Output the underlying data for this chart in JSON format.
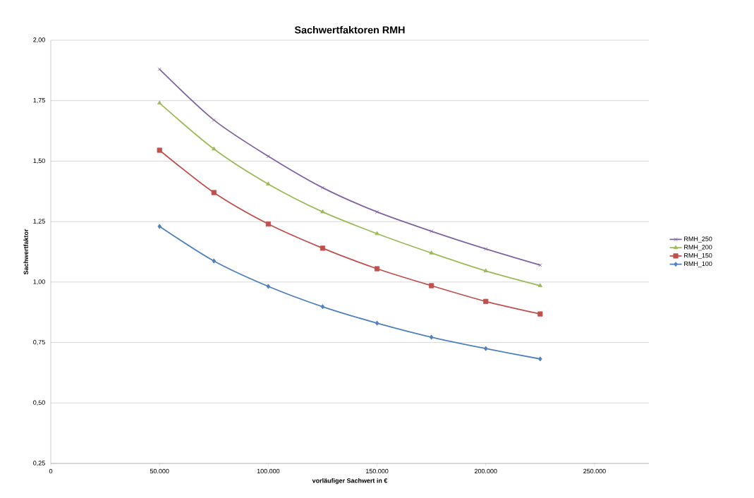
{
  "chart_data": {
    "type": "line",
    "title": "Sachwertfaktoren RMH",
    "xlabel": "vorläufiger Sachwert in €",
    "ylabel": "Sachwertfaktor",
    "x": [
      50000,
      75000,
      100000,
      125000,
      150000,
      175000,
      200000,
      225000
    ],
    "series": [
      {
        "name": "RMH_250",
        "color": "#8064a2",
        "marker": "cross",
        "values": [
          1.88,
          1.67,
          1.52,
          1.39,
          1.29,
          1.21,
          1.137,
          1.07
        ]
      },
      {
        "name": "RMH_200",
        "color": "#9bbb59",
        "marker": "triangle",
        "values": [
          1.74,
          1.55,
          1.405,
          1.29,
          1.2,
          1.12,
          1.046,
          0.985
        ]
      },
      {
        "name": "RMH_150",
        "color": "#c0504d",
        "marker": "square",
        "values": [
          1.545,
          1.37,
          1.24,
          1.14,
          1.055,
          0.985,
          0.92,
          0.868
        ]
      },
      {
        "name": "RMH_100",
        "color": "#4f81bd",
        "marker": "diamond",
        "values": [
          1.23,
          1.087,
          0.982,
          0.898,
          0.83,
          0.772,
          0.725,
          0.682
        ]
      }
    ],
    "xlim": [
      0,
      275000
    ],
    "xticks": [
      0,
      {
        "value": 50000,
        "label": "50.000"
      },
      {
        "value": 100000,
        "label": "100.000"
      },
      {
        "value": 150000,
        "label": "150.000"
      },
      {
        "value": 200000,
        "label": "200.000"
      },
      {
        "value": 250000,
        "label": "250.000"
      }
    ],
    "ylim": [
      0.25,
      2.0
    ],
    "yticks": [
      {
        "value": 0.25,
        "label": "0,25"
      },
      {
        "value": 0.5,
        "label": "0,50"
      },
      {
        "value": 0.75,
        "label": "0,75"
      },
      {
        "value": 1.0,
        "label": "1,00"
      },
      {
        "value": 1.25,
        "label": "1,25"
      },
      {
        "value": 1.5,
        "label": "1,50"
      },
      {
        "value": 1.75,
        "label": "1,75"
      },
      {
        "value": 2.0,
        "label": "2,00"
      }
    ],
    "grid": "y",
    "legend": "right",
    "line_style": "solid"
  }
}
